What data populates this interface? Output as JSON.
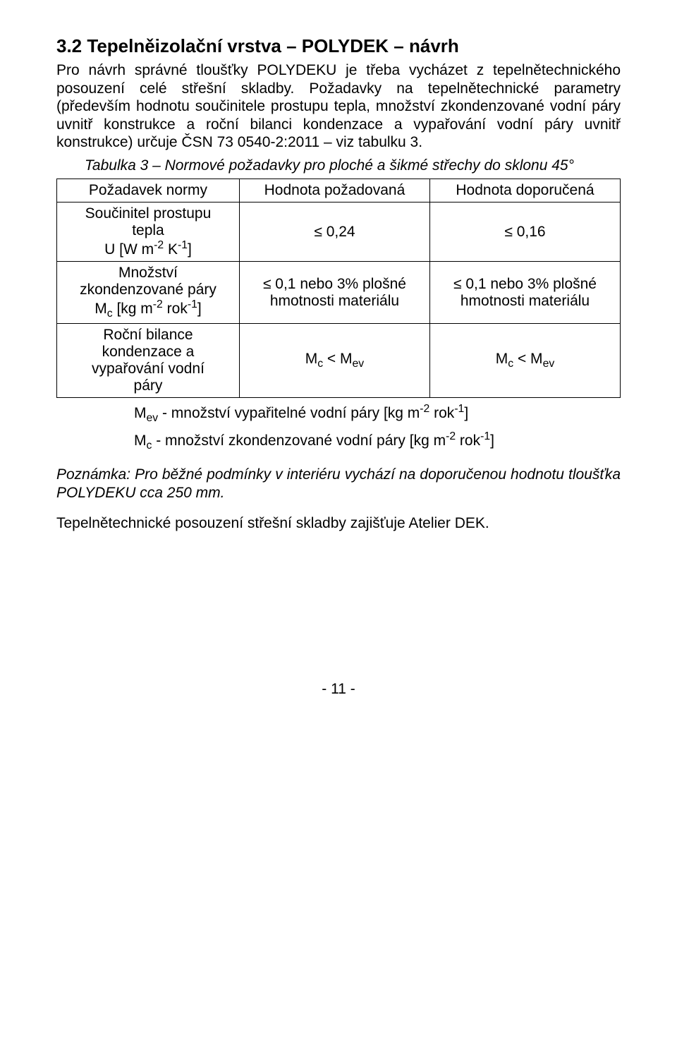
{
  "heading": "3.2    Tepelněizolační vrstva – POLYDEK – návrh",
  "para1": "Pro návrh správné tloušťky POLYDEKU je třeba vycházet z tepelnětechnického posouzení celé střešní skladby. Požadavky na tepelnětechnické parametry (především hodnotu součinitele prostupu tepla, množství zkondenzované vodní páry uvnitř konstrukce a roční bilanci kondenzace a vypařování vodní páry uvnitř konstrukce) určuje ČSN 73 0540-2:2011 – viz tabulku 3.",
  "tableCaption": "Tabulka 3 – Normové požadavky pro ploché a šikmé střechy do sklonu 45°",
  "table": {
    "headers": [
      "Požadavek normy",
      "Hodnota požadovaná",
      "Hodnota doporučená"
    ],
    "rows": [
      {
        "label_html": "Součinitel prostupu<br>tepla<br>U [W m<span class='sup'>-2</span> K<span class='sup'>-1</span>]",
        "col2": "≤ 0,24",
        "col3": "≤ 0,16"
      },
      {
        "label_html": "Množství<br>zkondenzované páry<br>M<span class='sub'>c</span> [kg m<span class='sup'>-2</span> rok<span class='sup'>-1</span>]",
        "col2": "≤ 0,1 nebo 3% plošné<br>hmotnosti materiálu",
        "col3": "≤ 0,1 nebo 3% plošné<br>hmotnosti materiálu"
      },
      {
        "label_html": "Roční bilance<br>kondenzace a<br>vypařování vodní<br>páry",
        "col2": "M<span class='sub'>c</span> &lt; M<span class='sub'>ev</span>",
        "col3": "M<span class='sub'>c</span> &lt; M<span class='sub'>ev</span>"
      }
    ]
  },
  "tableNote1_html": "M<span class='sub'>ev</span> - množství vypařitelné vodní páry [kg m<span class='sup'>-2</span> rok<span class='sup'>-1</span>]",
  "tableNote2_html": "M<span class='sub'>c</span> - množství zkondenzované vodní páry [kg m<span class='sup'>-2</span> rok<span class='sup'>-1</span>]",
  "para2": "Poznámka: Pro běžné podmínky v interiéru vychází na doporučenou hodnotu tloušťka POLYDEKU cca 250 mm.",
  "para3": "Tepelnětechnické posouzení střešní skladby zajišťuje Atelier DEK.",
  "footer": "- 11 -"
}
